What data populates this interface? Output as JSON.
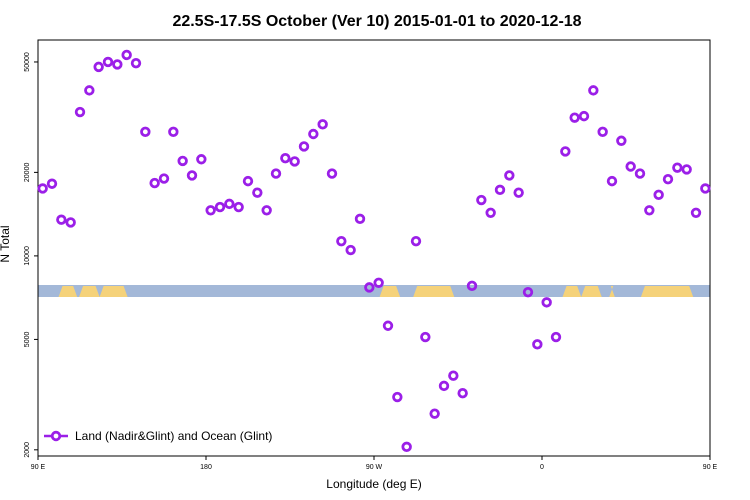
{
  "chart_data": {
    "type": "scatter",
    "title": "22.5S-17.5S October (Ver 10)   2015-01-01 to 2020-12-18",
    "xlabel": "Longitude (deg E)",
    "ylabel": "N Total",
    "xlim": [
      90,
      450
    ],
    "ylim": [
      1900,
      60000
    ],
    "yscale": "log",
    "x_ticks": [
      {
        "value": 90,
        "label": "90 E"
      },
      {
        "value": 180,
        "label": "180"
      },
      {
        "value": 270,
        "label": "90 W"
      },
      {
        "value": 360,
        "label": "0"
      },
      {
        "value": 450,
        "label": "90 E"
      }
    ],
    "x_ticks_extra": [
      450
    ],
    "y_ticks": [
      {
        "value": 2000,
        "label": "2000"
      },
      {
        "value": 5000,
        "label": "5000"
      },
      {
        "value": 10000,
        "label": "10000"
      },
      {
        "value": 20000,
        "label": "20000"
      },
      {
        "value": 50000,
        "label": "50000"
      }
    ],
    "grid": false,
    "legend": {
      "position": "bottom-left",
      "entries": [
        "Land (Nadir&Glint) and Ocean (Glint)"
      ]
    },
    "marker_color": "#9B1FE8",
    "land_color": "#F5D27A",
    "ocean_color": "#A3B8D8",
    "series": [
      {
        "name": "Land (Nadir&Glint) and Ocean (Glint)",
        "points": [
          [
            92.5,
            17500
          ],
          [
            97.5,
            18200
          ],
          [
            102.5,
            13500
          ],
          [
            107.5,
            13200
          ],
          [
            112.5,
            33000
          ],
          [
            117.5,
            39500
          ],
          [
            122.5,
            48000
          ],
          [
            127.5,
            50000
          ],
          [
            132.5,
            49000
          ],
          [
            137.5,
            53000
          ],
          [
            142.5,
            49500
          ],
          [
            147.5,
            28000
          ],
          [
            152.5,
            18300
          ],
          [
            157.5,
            19000
          ],
          [
            162.5,
            28000
          ],
          [
            167.5,
            22000
          ],
          [
            172.5,
            19500
          ],
          [
            177.5,
            22300
          ],
          [
            182.5,
            14600
          ],
          [
            187.5,
            15000
          ],
          [
            192.5,
            15400
          ],
          [
            197.5,
            15000
          ],
          [
            202.5,
            18600
          ],
          [
            207.5,
            16900
          ],
          [
            212.5,
            14600
          ],
          [
            217.5,
            19800
          ],
          [
            222.5,
            22500
          ],
          [
            227.5,
            21900
          ],
          [
            232.5,
            24800
          ],
          [
            237.5,
            27500
          ],
          [
            242.5,
            29800
          ],
          [
            247.5,
            19800
          ],
          [
            252.5,
            11300
          ],
          [
            257.5,
            10500
          ],
          [
            262.5,
            13600
          ],
          [
            267.5,
            7700
          ],
          [
            272.5,
            8000
          ],
          [
            277.5,
            5600
          ],
          [
            282.5,
            3100
          ],
          [
            287.5,
            2050
          ],
          [
            292.5,
            11300
          ],
          [
            297.5,
            5100
          ],
          [
            302.5,
            2700
          ],
          [
            307.5,
            3400
          ],
          [
            312.5,
            3700
          ],
          [
            317.5,
            3200
          ],
          [
            322.5,
            7800
          ],
          [
            327.5,
            15900
          ],
          [
            332.5,
            14300
          ],
          [
            337.5,
            17300
          ],
          [
            342.5,
            19500
          ],
          [
            347.5,
            16900
          ],
          [
            352.5,
            7400
          ],
          [
            357.5,
            4800
          ],
          [
            362.5,
            6800
          ],
          [
            367.5,
            5100
          ],
          [
            372.5,
            23800
          ],
          [
            377.5,
            31500
          ],
          [
            382.5,
            31900
          ],
          [
            387.5,
            39500
          ],
          [
            392.5,
            28000
          ],
          [
            397.5,
            18600
          ],
          [
            402.5,
            26000
          ],
          [
            407.5,
            21000
          ],
          [
            412.5,
            19800
          ],
          [
            417.5,
            14600
          ],
          [
            422.5,
            16600
          ],
          [
            427.5,
            18900
          ],
          [
            432.5,
            20800
          ],
          [
            437.5,
            20500
          ],
          [
            442.5,
            14300
          ],
          [
            447.5,
            17500
          ]
        ]
      }
    ]
  },
  "surface_bands": [
    {
      "type": "land",
      "from": 101,
      "to": 111
    },
    {
      "type": "land",
      "from": 112,
      "to": 123
    },
    {
      "type": "land",
      "from": 123,
      "to": 138
    },
    {
      "type": "land",
      "from": 273,
      "to": 284
    },
    {
      "type": "land",
      "from": 291,
      "to": 313
    },
    {
      "type": "land",
      "from": 371,
      "to": 381
    },
    {
      "type": "land",
      "from": 381,
      "to": 392
    },
    {
      "type": "land",
      "from": 396,
      "to": 399
    },
    {
      "type": "land",
      "from": 413,
      "to": 441
    }
  ]
}
